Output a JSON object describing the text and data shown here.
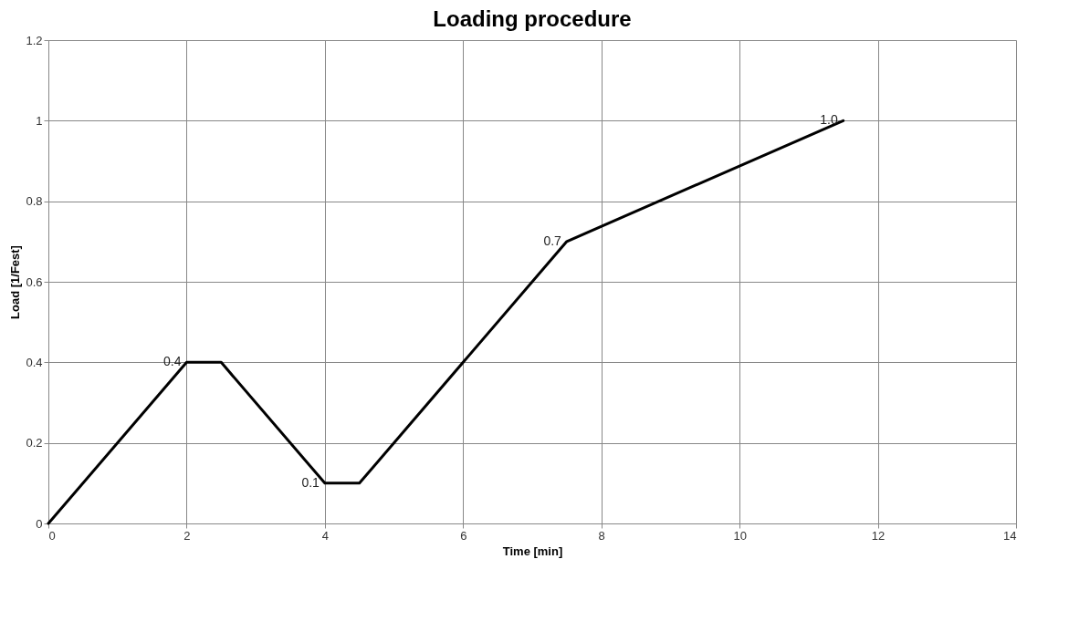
{
  "chart_data": {
    "type": "line",
    "title": "Loading procedure",
    "xlabel": "Time [min]",
    "ylabel": "Load [1/Fest]",
    "x": [
      0,
      2,
      2.5,
      4,
      4.5,
      7.5,
      11.5
    ],
    "series": [
      {
        "color": "#000000",
        "values": [
          0,
          0.4,
          0.4,
          0.1,
          0.1,
          0.7,
          1.0
        ]
      }
    ],
    "xlim": [
      0,
      14
    ],
    "xticks": [
      0,
      2,
      4,
      6,
      8,
      10,
      12,
      14
    ],
    "ylim": [
      0,
      1.2
    ],
    "yticks": [
      0,
      0.2,
      0.4,
      0.6,
      0.8,
      1,
      1.2
    ],
    "grid": true,
    "legend": false,
    "marker": "none",
    "line_style": "solid",
    "annotations": [
      {
        "text": "0.4",
        "x": 2,
        "y": 0.4
      },
      {
        "text": "0.1",
        "x": 4,
        "y": 0.1
      },
      {
        "text": "0.7",
        "x": 7.5,
        "y": 0.7
      },
      {
        "text": "1.0",
        "x": 11.5,
        "y": 1.0
      }
    ]
  }
}
